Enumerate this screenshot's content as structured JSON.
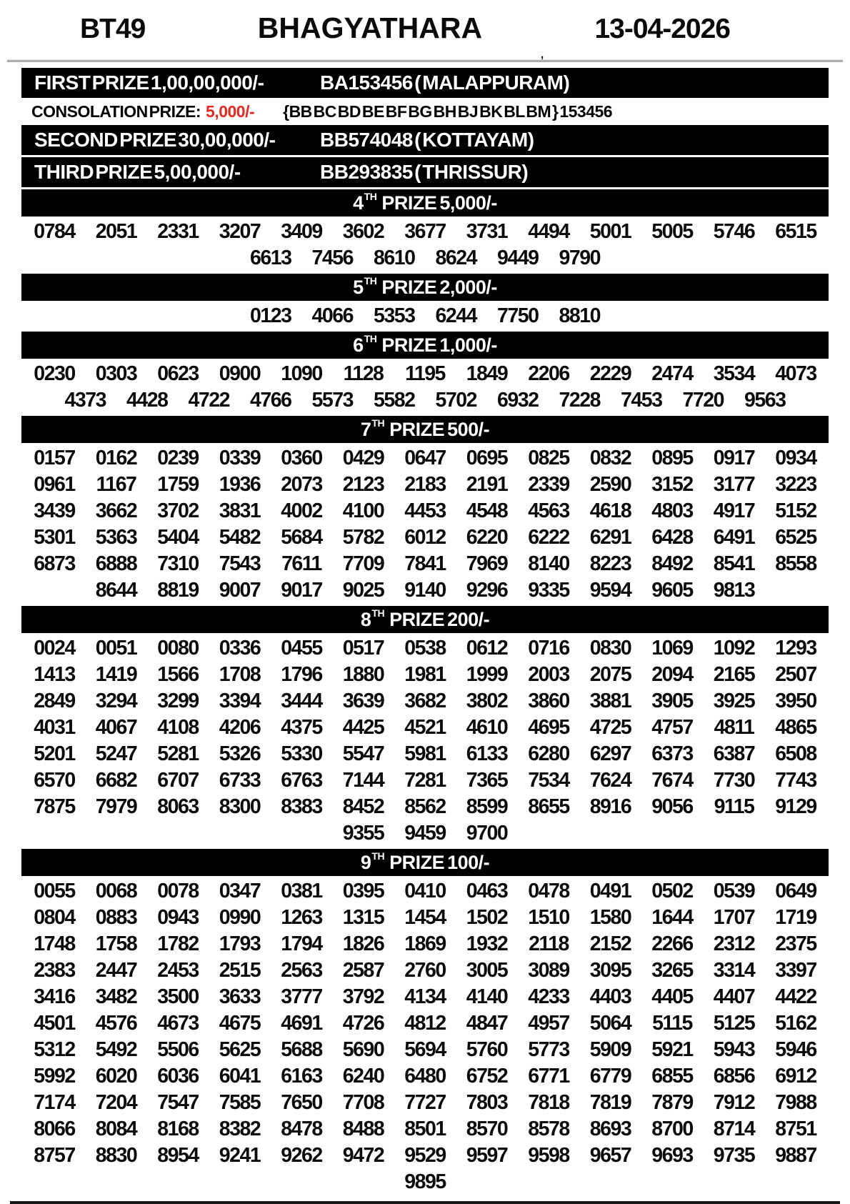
{
  "header": {
    "code": "BT49",
    "title": "BHAGYATHARA",
    "date": "13-04-2026"
  },
  "decor": {
    "stray_mark": ","
  },
  "top": {
    "first": {
      "label": "FIRST PRIZE 1,00,00,000/-",
      "winner": "BA153456 ( MALAPPURAM)"
    },
    "consolation": {
      "label": "CONSOLATION PRIZE:",
      "amount": "5,000/-",
      "series": "{BB BC BD BE BF BG BH BJ BK BL BM } 153456"
    },
    "second": {
      "label": "SECOND PRIZE 30,00,000/-",
      "winner": "BB574048 ( KOTTAYAM)"
    },
    "third": {
      "label": "THIRD PRIZE 5,00,000/-",
      "winner": "BB293835 ( THRISSUR)"
    }
  },
  "accent_colors": {
    "bar_bg": "#000000",
    "bar_text": "#ffffff",
    "consolation_amount_red": "#e62823"
  },
  "per_row": 13,
  "sections": [
    {
      "id": "4th",
      "ordinal": "4",
      "sup": "TH",
      "rest": "PRIZE 5,000/-",
      "numbers": [
        "0784",
        "2051",
        "2331",
        "3207",
        "3409",
        "3602",
        "3677",
        "3731",
        "4494",
        "5001",
        "5005",
        "5746",
        "6515",
        "6613",
        "7456",
        "8610",
        "8624",
        "9449",
        "9790"
      ]
    },
    {
      "id": "5th",
      "ordinal": "5",
      "sup": "TH",
      "rest": "PRIZE 2,000/-",
      "numbers": [
        "0123",
        "4066",
        "5353",
        "6244",
        "7750",
        "8810"
      ]
    },
    {
      "id": "6th",
      "ordinal": "6",
      "sup": "TH",
      "rest": "PRIZE 1,000/-",
      "numbers": [
        "0230",
        "0303",
        "0623",
        "0900",
        "1090",
        "1128",
        "1195",
        "1849",
        "2206",
        "2229",
        "2474",
        "3534",
        "4073",
        "4373",
        "4428",
        "4722",
        "4766",
        "5573",
        "5582",
        "5702",
        "6932",
        "7228",
        "7453",
        "7720",
        "9563"
      ]
    },
    {
      "id": "7th",
      "ordinal": "7",
      "sup": "TH",
      "rest": "PRIZE 500/-",
      "numbers": [
        "0157",
        "0162",
        "0239",
        "0339",
        "0360",
        "0429",
        "0647",
        "0695",
        "0825",
        "0832",
        "0895",
        "0917",
        "0934",
        "0961",
        "1167",
        "1759",
        "1936",
        "2073",
        "2123",
        "2183",
        "2191",
        "2339",
        "2590",
        "3152",
        "3177",
        "3223",
        "3439",
        "3662",
        "3702",
        "3831",
        "4002",
        "4100",
        "4453",
        "4548",
        "4563",
        "4618",
        "4803",
        "4917",
        "5152",
        "5301",
        "5363",
        "5404",
        "5482",
        "5684",
        "5782",
        "6012",
        "6220",
        "6222",
        "6291",
        "6428",
        "6491",
        "6525",
        "6873",
        "6888",
        "7310",
        "7543",
        "7611",
        "7709",
        "7841",
        "7969",
        "8140",
        "8223",
        "8492",
        "8541",
        "8558",
        "8644",
        "8819",
        "9007",
        "9017",
        "9025",
        "9140",
        "9296",
        "9335",
        "9594",
        "9605",
        "9813"
      ]
    },
    {
      "id": "8th",
      "ordinal": "8",
      "sup": "TH",
      "rest": "PRIZE 200/-",
      "numbers": [
        "0024",
        "0051",
        "0080",
        "0336",
        "0455",
        "0517",
        "0538",
        "0612",
        "0716",
        "0830",
        "1069",
        "1092",
        "1293",
        "1413",
        "1419",
        "1566",
        "1708",
        "1796",
        "1880",
        "1981",
        "1999",
        "2003",
        "2075",
        "2094",
        "2165",
        "2507",
        "2849",
        "3294",
        "3299",
        "3394",
        "3444",
        "3639",
        "3682",
        "3802",
        "3860",
        "3881",
        "3905",
        "3925",
        "3950",
        "4031",
        "4067",
        "4108",
        "4206",
        "4375",
        "4425",
        "4521",
        "4610",
        "4695",
        "4725",
        "4757",
        "4811",
        "4865",
        "5201",
        "5247",
        "5281",
        "5326",
        "5330",
        "5547",
        "5981",
        "6133",
        "6280",
        "6297",
        "6373",
        "6387",
        "6508",
        "6570",
        "6682",
        "6707",
        "6733",
        "6763",
        "7144",
        "7281",
        "7365",
        "7534",
        "7624",
        "7674",
        "7730",
        "7743",
        "7875",
        "7979",
        "8063",
        "8300",
        "8383",
        "8452",
        "8562",
        "8599",
        "8655",
        "8916",
        "9056",
        "9115",
        "9129",
        "9355",
        "9459",
        "9700"
      ]
    },
    {
      "id": "9th",
      "ordinal": "9",
      "sup": "TH",
      "rest": "PRIZE 100/-",
      "numbers": [
        "0055",
        "0068",
        "0078",
        "0347",
        "0381",
        "0395",
        "0410",
        "0463",
        "0478",
        "0491",
        "0502",
        "0539",
        "0649",
        "0804",
        "0883",
        "0943",
        "0990",
        "1263",
        "1315",
        "1454",
        "1502",
        "1510",
        "1580",
        "1644",
        "1707",
        "1719",
        "1748",
        "1758",
        "1782",
        "1793",
        "1794",
        "1826",
        "1869",
        "1932",
        "2118",
        "2152",
        "2266",
        "2312",
        "2375",
        "2383",
        "2447",
        "2453",
        "2515",
        "2563",
        "2587",
        "2760",
        "3005",
        "3089",
        "3095",
        "3265",
        "3314",
        "3397",
        "3416",
        "3482",
        "3500",
        "3633",
        "3777",
        "3792",
        "4134",
        "4140",
        "4233",
        "4403",
        "4405",
        "4407",
        "4422",
        "4501",
        "4576",
        "4673",
        "4675",
        "4691",
        "4726",
        "4812",
        "4847",
        "4957",
        "5064",
        "5115",
        "5125",
        "5162",
        "5312",
        "5492",
        "5506",
        "5625",
        "5688",
        "5690",
        "5694",
        "5760",
        "5773",
        "5909",
        "5921",
        "5943",
        "5946",
        "5992",
        "6020",
        "6036",
        "6041",
        "6163",
        "6240",
        "6480",
        "6752",
        "6771",
        "6779",
        "6855",
        "6856",
        "6912",
        "7174",
        "7204",
        "7547",
        "7585",
        "7650",
        "7708",
        "7727",
        "7803",
        "7818",
        "7819",
        "7879",
        "7912",
        "7988",
        "8066",
        "8084",
        "8168",
        "8382",
        "8478",
        "8488",
        "8501",
        "8570",
        "8578",
        "8693",
        "8700",
        "8714",
        "8751",
        "8757",
        "8830",
        "8954",
        "9241",
        "9262",
        "9472",
        "9529",
        "9597",
        "9598",
        "9657",
        "9693",
        "9735",
        "9887",
        "9895"
      ]
    }
  ]
}
